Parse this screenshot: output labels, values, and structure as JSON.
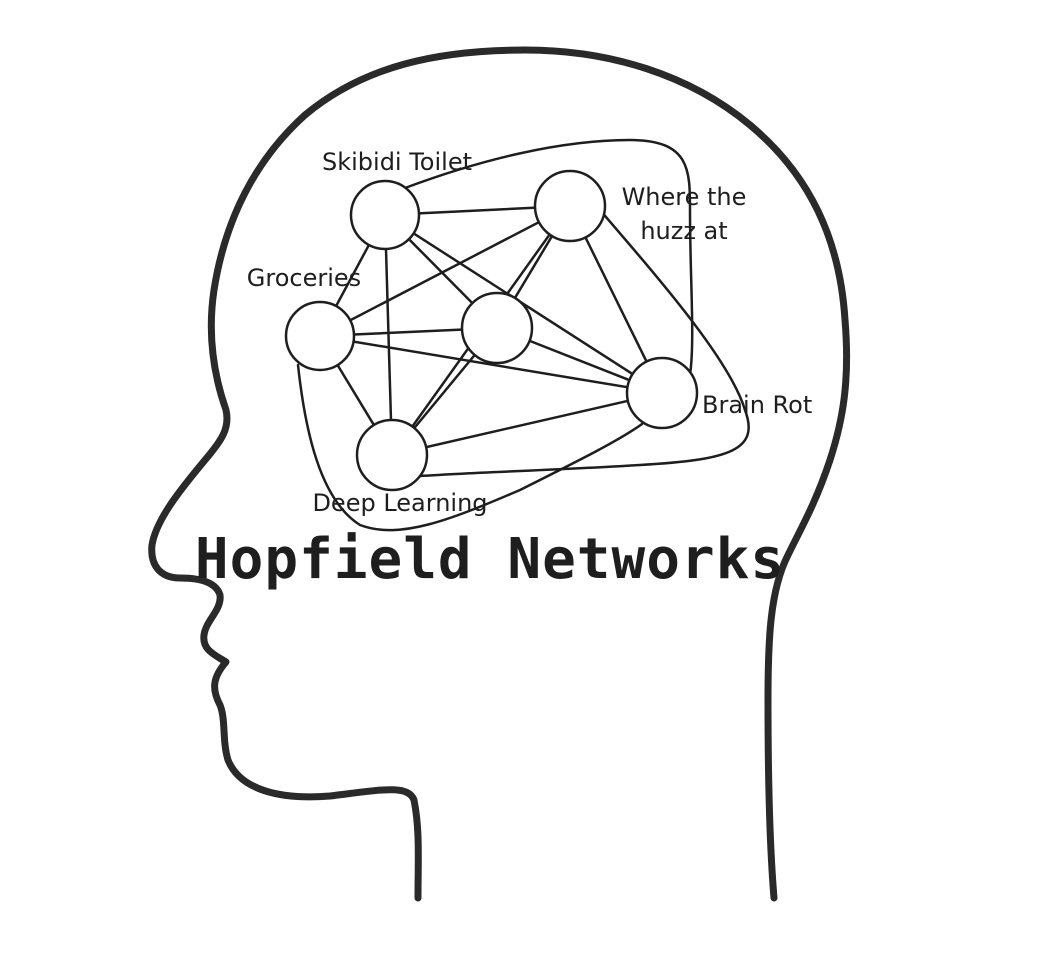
{
  "title": "Hopfield Networks",
  "nodes": [
    {
      "id": "skibidi",
      "label_lines": [
        "Skibidi Toilet"
      ]
    },
    {
      "id": "huzz",
      "label_lines": [
        "Where the",
        "huzz at"
      ]
    },
    {
      "id": "groceries",
      "label_lines": [
        "Groceries"
      ]
    },
    {
      "id": "center",
      "label_lines": []
    },
    {
      "id": "brainrot",
      "label_lines": [
        "Brain Rot"
      ]
    },
    {
      "id": "deeplearning",
      "label_lines": [
        "Deep Learning"
      ]
    }
  ],
  "edges": [
    [
      "skibidi",
      "huzz"
    ],
    [
      "skibidi",
      "groceries"
    ],
    [
      "skibidi",
      "center"
    ],
    [
      "skibidi",
      "deeplearning"
    ],
    [
      "skibidi",
      "brainrot"
    ],
    [
      "huzz",
      "groceries"
    ],
    [
      "huzz",
      "center"
    ],
    [
      "huzz",
      "brainrot"
    ],
    [
      "huzz",
      "deeplearning"
    ],
    [
      "groceries",
      "center"
    ],
    [
      "groceries",
      "deeplearning"
    ],
    [
      "groceries",
      "brainrot"
    ],
    [
      "center",
      "brainrot"
    ],
    [
      "center",
      "deeplearning"
    ],
    [
      "brainrot",
      "deeplearning"
    ]
  ],
  "colors": {
    "stroke": "#1e1e1e",
    "background": "#ffffff"
  }
}
